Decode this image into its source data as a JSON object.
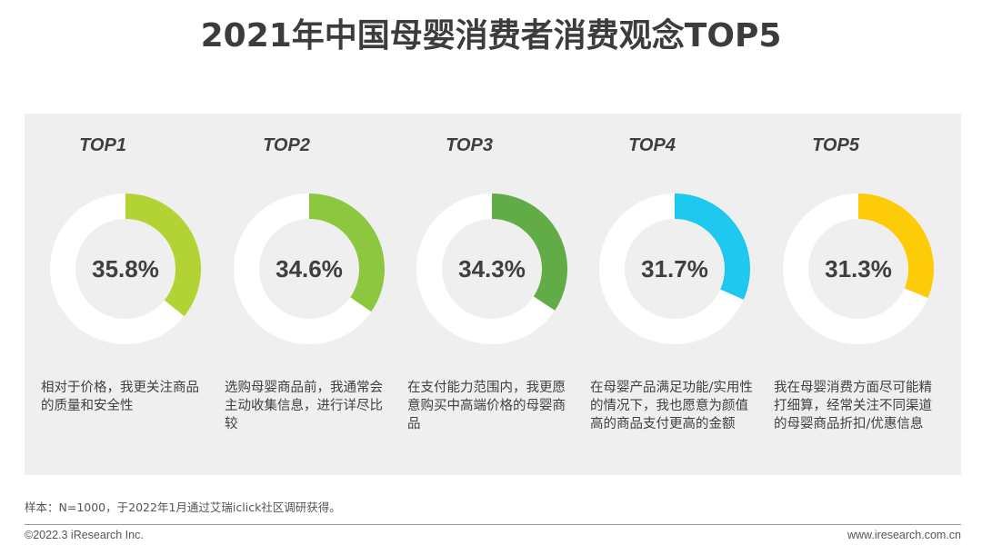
{
  "title": "2021年中国母婴消费者消费观念TOP5",
  "chart_data": {
    "type": "pie",
    "items": [
      {
        "rank": "TOP1",
        "value": 35.8,
        "label": "35.8%",
        "color": "#b3d334",
        "desc": "相对于价格，我更关注商品的质量和安全性"
      },
      {
        "rank": "TOP2",
        "value": 34.6,
        "label": "34.6%",
        "color": "#8dc63f",
        "desc": "选购母婴商品前，我通常会主动收集信息，进行详尽比较"
      },
      {
        "rank": "TOP3",
        "value": 34.3,
        "label": "34.3%",
        "color": "#62ac47",
        "desc": "在支付能力范围内，我更愿意购买中高端价格的母婴商品"
      },
      {
        "rank": "TOP4",
        "value": 31.7,
        "label": "31.7%",
        "color": "#1ec8ef",
        "desc": "在母婴产品满足功能/实用性的情况下，我也愿意为颜值高的商品支付更高的金额"
      },
      {
        "rank": "TOP5",
        "value": 31.3,
        "label": "31.3%",
        "color": "#fdcb08",
        "desc": "我在母婴消费方面尽可能精打细算，经常关注不同渠道的母婴商品折扣/优惠信息"
      }
    ]
  },
  "footer": {
    "note": "样本：N=1000，于2022年1月通过艾瑞iclick社区调研获得。",
    "copyright": "©2022.3 iResearch Inc.",
    "website": "www.iresearch.com.cn"
  }
}
